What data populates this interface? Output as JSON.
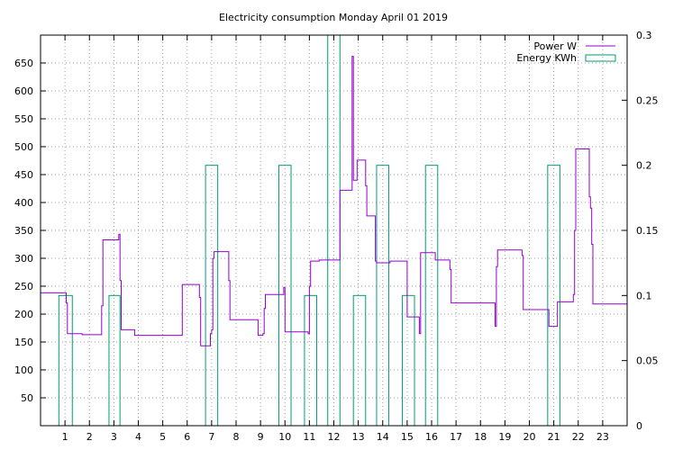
{
  "chart_data": {
    "type": "line",
    "title": "Electricity consumption Monday April 01 2019",
    "grid": true,
    "legend_position": "top-right",
    "x": {
      "range": [
        0,
        24
      ],
      "ticks": [
        1,
        2,
        3,
        4,
        5,
        6,
        7,
        8,
        9,
        10,
        11,
        12,
        13,
        14,
        15,
        16,
        17,
        18,
        19,
        20,
        21,
        22,
        23
      ],
      "tick_labels": [
        "1",
        "2",
        "3",
        "4",
        "5",
        "6",
        "7",
        "8",
        "9",
        "10",
        "11",
        "12",
        "13",
        "14",
        "15",
        "16",
        "17",
        "18",
        "19",
        "20",
        "21",
        "22",
        "23"
      ]
    },
    "y": {
      "range": [
        0,
        700
      ],
      "ticks": [
        50,
        100,
        150,
        200,
        250,
        300,
        350,
        400,
        450,
        500,
        550,
        600,
        650
      ],
      "tick_labels": [
        "50",
        "100",
        "150",
        "200",
        "250",
        "300",
        "350",
        "400",
        "450",
        "500",
        "550",
        "600",
        "650"
      ]
    },
    "y2": {
      "range": [
        0,
        0.3
      ],
      "ticks": [
        0,
        0.05,
        0.1,
        0.15,
        0.2,
        0.25,
        0.3
      ],
      "tick_labels": [
        "0",
        "0.05",
        "0.1",
        "0.15",
        "0.2",
        "0.25",
        "0.3"
      ]
    },
    "series": [
      {
        "name": "Power W",
        "axis": "y",
        "color": "#9400d3",
        "style": "steps",
        "points": [
          [
            0,
            238
          ],
          [
            1.05,
            238
          ],
          [
            1.05,
            220
          ],
          [
            1.1,
            220
          ],
          [
            1.1,
            165
          ],
          [
            1.7,
            165
          ],
          [
            1.7,
            163
          ],
          [
            2.5,
            163
          ],
          [
            2.5,
            215
          ],
          [
            2.55,
            215
          ],
          [
            2.55,
            333
          ],
          [
            3.2,
            333
          ],
          [
            3.2,
            343
          ],
          [
            3.25,
            343
          ],
          [
            3.25,
            260
          ],
          [
            3.3,
            260
          ],
          [
            3.3,
            172
          ],
          [
            3.85,
            172
          ],
          [
            3.85,
            162
          ],
          [
            5.8,
            162
          ],
          [
            5.8,
            253
          ],
          [
            6.5,
            253
          ],
          [
            6.5,
            230
          ],
          [
            6.55,
            230
          ],
          [
            6.55,
            143
          ],
          [
            6.95,
            143
          ],
          [
            6.95,
            165
          ],
          [
            7.0,
            165
          ],
          [
            7.0,
            172
          ],
          [
            7.05,
            172
          ],
          [
            7.05,
            300
          ],
          [
            7.1,
            300
          ],
          [
            7.1,
            312
          ],
          [
            7.7,
            312
          ],
          [
            7.7,
            260
          ],
          [
            7.75,
            260
          ],
          [
            7.75,
            190
          ],
          [
            8.9,
            190
          ],
          [
            8.9,
            162
          ],
          [
            9.1,
            162
          ],
          [
            9.1,
            165
          ],
          [
            9.15,
            165
          ],
          [
            9.15,
            210
          ],
          [
            9.2,
            210
          ],
          [
            9.2,
            235
          ],
          [
            9.95,
            235
          ],
          [
            9.95,
            248
          ],
          [
            10.0,
            248
          ],
          [
            10.0,
            168
          ],
          [
            10.95,
            168
          ],
          [
            10.95,
            165
          ],
          [
            11.0,
            165
          ],
          [
            11.0,
            250
          ],
          [
            11.05,
            250
          ],
          [
            11.05,
            295
          ],
          [
            11.4,
            295
          ],
          [
            11.4,
            297
          ],
          [
            12.25,
            297
          ],
          [
            12.25,
            422
          ],
          [
            12.75,
            422
          ],
          [
            12.75,
            662
          ],
          [
            12.8,
            662
          ],
          [
            12.8,
            440
          ],
          [
            12.95,
            440
          ],
          [
            12.95,
            476
          ],
          [
            13.3,
            476
          ],
          [
            13.3,
            430
          ],
          [
            13.35,
            430
          ],
          [
            13.35,
            376
          ],
          [
            13.7,
            376
          ],
          [
            13.7,
            295
          ],
          [
            13.75,
            295
          ],
          [
            13.75,
            292
          ],
          [
            14.3,
            292
          ],
          [
            14.3,
            295
          ],
          [
            15.0,
            295
          ],
          [
            15.0,
            195
          ],
          [
            15.5,
            195
          ],
          [
            15.5,
            165
          ],
          [
            15.55,
            165
          ],
          [
            15.55,
            310
          ],
          [
            16.15,
            310
          ],
          [
            16.15,
            297
          ],
          [
            16.75,
            297
          ],
          [
            16.75,
            280
          ],
          [
            16.8,
            280
          ],
          [
            16.8,
            220
          ],
          [
            18.6,
            220
          ],
          [
            18.6,
            178
          ],
          [
            18.65,
            178
          ],
          [
            18.65,
            285
          ],
          [
            18.7,
            285
          ],
          [
            18.7,
            315
          ],
          [
            19.7,
            315
          ],
          [
            19.7,
            305
          ],
          [
            19.75,
            305
          ],
          [
            19.75,
            208
          ],
          [
            20.8,
            208
          ],
          [
            20.8,
            178
          ],
          [
            21.15,
            178
          ],
          [
            21.15,
            222
          ],
          [
            21.8,
            222
          ],
          [
            21.8,
            235
          ],
          [
            21.85,
            235
          ],
          [
            21.85,
            350
          ],
          [
            21.9,
            350
          ],
          [
            21.9,
            496
          ],
          [
            22.45,
            496
          ],
          [
            22.45,
            410
          ],
          [
            22.5,
            410
          ],
          [
            22.5,
            390
          ],
          [
            22.55,
            390
          ],
          [
            22.55,
            325
          ],
          [
            22.6,
            325
          ],
          [
            22.6,
            218
          ],
          [
            24.0,
            218
          ]
        ]
      },
      {
        "name": "Energy KWh",
        "axis": "y2",
        "color": "#009e73",
        "style": "boxes",
        "bars": [
          {
            "x0": 0.75,
            "x1": 1.3,
            "value": 0.1
          },
          {
            "x0": 2.8,
            "x1": 3.25,
            "value": 0.1
          },
          {
            "x0": 6.75,
            "x1": 7.25,
            "value": 0.2
          },
          {
            "x0": 9.75,
            "x1": 10.25,
            "value": 0.2
          },
          {
            "x0": 10.8,
            "x1": 11.3,
            "value": 0.1
          },
          {
            "x0": 11.75,
            "x1": 12.25,
            "value": 0.3
          },
          {
            "x0": 12.8,
            "x1": 13.3,
            "value": 0.1
          },
          {
            "x0": 13.75,
            "x1": 14.25,
            "value": 0.2
          },
          {
            "x0": 14.8,
            "x1": 15.3,
            "value": 0.1
          },
          {
            "x0": 15.75,
            "x1": 16.25,
            "value": 0.2
          },
          {
            "x0": 20.75,
            "x1": 21.25,
            "value": 0.2
          }
        ]
      }
    ]
  }
}
